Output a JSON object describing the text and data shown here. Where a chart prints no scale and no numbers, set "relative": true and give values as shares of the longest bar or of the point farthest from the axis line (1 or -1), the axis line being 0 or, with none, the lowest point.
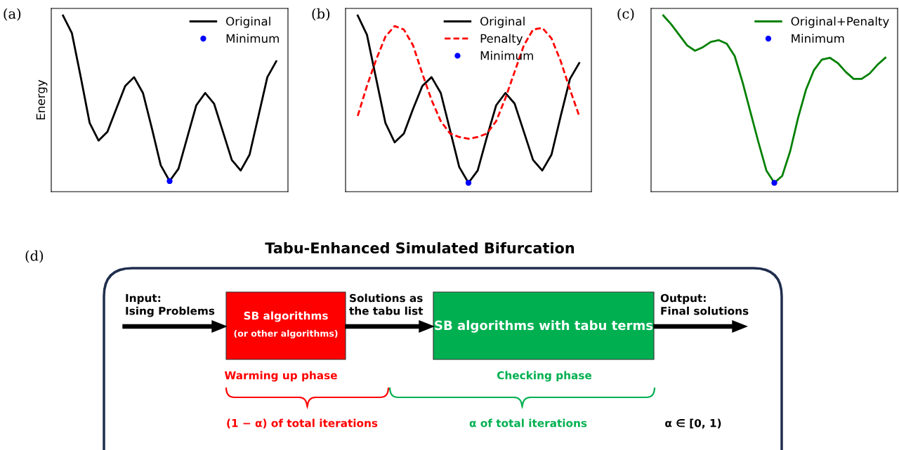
{
  "chart_data": [
    {
      "type": "line",
      "relative": true,
      "ylabel": "Energy",
      "annotations": [
        "(a)"
      ],
      "legend": "top right",
      "tick_labels": false,
      "grid": false,
      "categories": [
        null,
        null,
        null,
        null,
        null,
        null,
        null,
        null,
        null,
        null,
        null,
        null,
        null,
        null,
        null,
        null,
        null,
        null,
        null,
        null,
        null,
        null,
        null,
        null,
        null
      ],
      "series": [
        {
          "name": "Original",
          "color": "#000000",
          "values": [
            1,
            0.9,
            0.65,
            0.39,
            0.29,
            0.34,
            0.47,
            0.6,
            0.65,
            0.56,
            0.36,
            0.15,
            0.06,
            0.13,
            0.31,
            0.49,
            0.56,
            0.5,
            0.34,
            0.18,
            0.12,
            0.21,
            0.43,
            0.65,
            0.74
          ]
        },
        {
          "name": "Minimum",
          "type": "line",
          "marker": "circle",
          "color": "#0000ff",
          "values": [
            null,
            null,
            null,
            null,
            null,
            null,
            null,
            null,
            null,
            null,
            null,
            null,
            0.06,
            null,
            null,
            null,
            null,
            null,
            null,
            null,
            null,
            null,
            null,
            null,
            null
          ]
        }
      ]
    },
    {
      "type": "line",
      "relative": true,
      "annotations": [
        "(b)"
      ],
      "legend": "top right",
      "tick_labels": false,
      "grid": false,
      "categories": [
        null,
        null,
        null,
        null,
        null,
        null,
        null,
        null,
        null,
        null,
        null,
        null,
        null,
        null,
        null,
        null,
        null,
        null,
        null,
        null,
        null,
        null,
        null,
        null,
        null
      ],
      "series": [
        {
          "name": "Original",
          "color": "#000000",
          "values": [
            1,
            0.89,
            0.64,
            0.39,
            0.28,
            0.33,
            0.47,
            0.6,
            0.65,
            0.56,
            0.35,
            0.14,
            0.05,
            0.12,
            0.31,
            0.49,
            0.56,
            0.5,
            0.34,
            0.18,
            0.12,
            0.21,
            0.43,
            0.64,
            0.73
          ]
        },
        {
          "name": "Penalty",
          "color": "#ff0000",
          "line_style": "dashed",
          "values": [
            0.43,
            0.6,
            0.75,
            0.88,
            0.94,
            0.92,
            0.83,
            0.67,
            0.52,
            0.4,
            0.33,
            0.31,
            0.3,
            0.31,
            0.33,
            0.4,
            0.53,
            0.68,
            0.83,
            0.92,
            0.93,
            0.87,
            0.74,
            0.58,
            0.43
          ]
        },
        {
          "name": "Minimum",
          "type": "line",
          "marker": "circle",
          "color": "#0000ff",
          "values": [
            null,
            null,
            null,
            null,
            null,
            null,
            null,
            null,
            null,
            null,
            null,
            null,
            0.05,
            null,
            null,
            null,
            null,
            null,
            null,
            null,
            null,
            null,
            null,
            null,
            null
          ]
        }
      ]
    },
    {
      "type": "line",
      "relative": true,
      "annotations": [
        "(c)"
      ],
      "legend": "top right",
      "tick_labels": false,
      "grid": false,
      "categories": [
        null,
        null,
        null,
        null,
        null,
        null,
        null,
        null,
        null,
        null,
        null,
        null,
        null,
        null,
        null,
        null,
        null,
        null,
        null,
        null,
        null,
        null,
        null,
        null,
        null,
        null,
        null,
        null,
        null
      ],
      "series": [
        {
          "name": "Original+Penalty",
          "color": "#008000",
          "values": [
            1,
            0.95,
            0.89,
            0.83,
            0.8,
            0.82,
            0.85,
            0.86,
            0.84,
            0.77,
            0.62,
            0.45,
            0.28,
            0.12,
            0.05,
            0.09,
            0.23,
            0.42,
            0.58,
            0.69,
            0.75,
            0.76,
            0.73,
            0.68,
            0.64,
            0.64,
            0.67,
            0.72,
            0.76
          ]
        },
        {
          "name": "Minimum",
          "type": "line",
          "marker": "circle",
          "color": "#0000ff",
          "values": [
            null,
            null,
            null,
            null,
            null,
            null,
            null,
            null,
            null,
            null,
            null,
            null,
            null,
            null,
            0.05,
            null,
            null,
            null,
            null,
            null,
            null,
            null,
            null,
            null,
            null,
            null,
            null,
            null,
            null
          ]
        }
      ]
    },
    {
      "type": "other",
      "title": "Tabu-Enhanced Simulated Bifurcation",
      "annotations": [
        "(d)",
        "Input:\nIsing Problems",
        "SB algorithms",
        "(or other algorithms)",
        "Solutions as\nthe tabu list",
        "SB algorithms with tabu terms",
        "Output:\nFinal solutions",
        "Warming up phase",
        "Checking phase",
        "(1 − α) of total iterations",
        "α of total iterations",
        "α ∈ [0, 1)"
      ]
    }
  ]
}
